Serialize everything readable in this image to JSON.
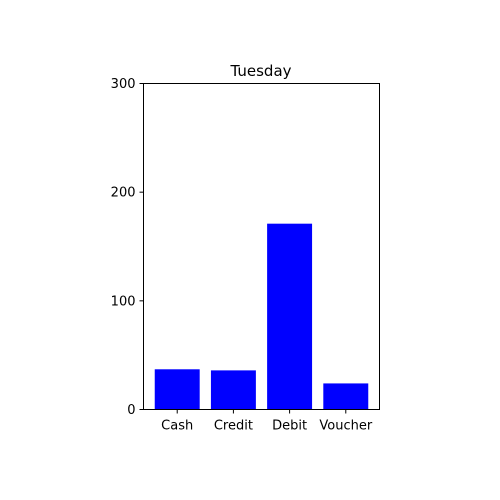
{
  "chart_data": {
    "type": "bar",
    "title": "Tuesday",
    "xlabel": "",
    "ylabel": "",
    "categories": [
      "Cash",
      "Credit",
      "Debit",
      "Voucher"
    ],
    "values": [
      37,
      36,
      171,
      24
    ],
    "ylim": [
      0,
      300
    ],
    "yticks": [
      0,
      100,
      200,
      300
    ],
    "ytick_labels": [
      "0",
      "100",
      "200",
      "300"
    ],
    "grid": false,
    "bar_color": "#0000ff"
  }
}
